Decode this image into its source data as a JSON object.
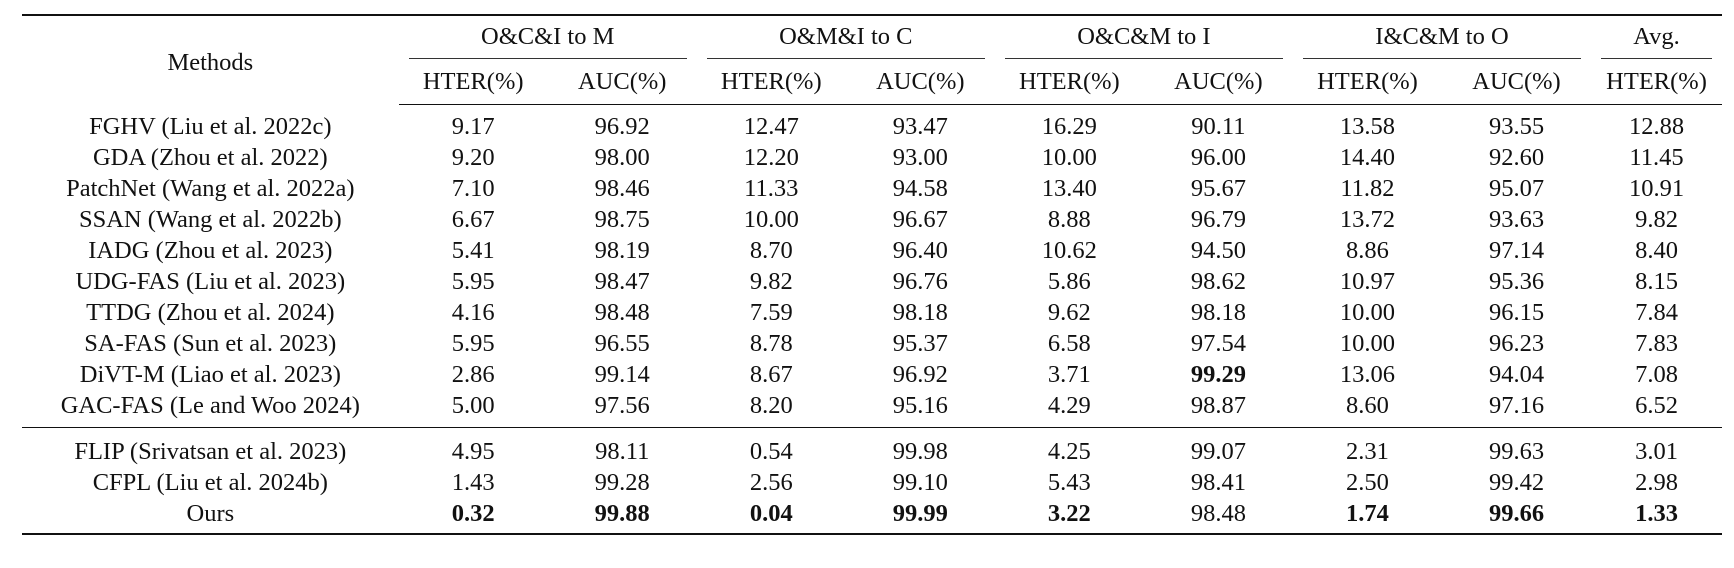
{
  "table": {
    "method_header": "Methods",
    "groups": [
      {
        "label": "O&C&I to M",
        "cols": [
          "HTER(%)",
          "AUC(%)"
        ]
      },
      {
        "label": "O&M&I to C",
        "cols": [
          "HTER(%)",
          "AUC(%)"
        ]
      },
      {
        "label": "O&C&M to I",
        "cols": [
          "HTER(%)",
          "AUC(%)"
        ]
      },
      {
        "label": "I&C&M to O",
        "cols": [
          "HTER(%)",
          "AUC(%)"
        ]
      },
      {
        "label": "Avg.",
        "cols": [
          "HTER(%)"
        ]
      }
    ],
    "section1": [
      {
        "method": "FGHV (Liu et al. 2022c)",
        "values": [
          "9.17",
          "96.92",
          "12.47",
          "93.47",
          "16.29",
          "90.11",
          "13.58",
          "93.55",
          "12.88"
        ],
        "bold": []
      },
      {
        "method": "GDA (Zhou et al. 2022)",
        "values": [
          "9.20",
          "98.00",
          "12.20",
          "93.00",
          "10.00",
          "96.00",
          "14.40",
          "92.60",
          "11.45"
        ],
        "bold": []
      },
      {
        "method": "PatchNet (Wang et al. 2022a)",
        "values": [
          "7.10",
          "98.46",
          "11.33",
          "94.58",
          "13.40",
          "95.67",
          "11.82",
          "95.07",
          "10.91"
        ],
        "bold": []
      },
      {
        "method": "SSAN (Wang et al. 2022b)",
        "values": [
          "6.67",
          "98.75",
          "10.00",
          "96.67",
          "8.88",
          "96.79",
          "13.72",
          "93.63",
          "9.82"
        ],
        "bold": []
      },
      {
        "method": "IADG (Zhou et al. 2023)",
        "values": [
          "5.41",
          "98.19",
          "8.70",
          "96.40",
          "10.62",
          "94.50",
          "8.86",
          "97.14",
          "8.40"
        ],
        "bold": []
      },
      {
        "method": "UDG-FAS (Liu et al. 2023)",
        "values": [
          "5.95",
          "98.47",
          "9.82",
          "96.76",
          "5.86",
          "98.62",
          "10.97",
          "95.36",
          "8.15"
        ],
        "bold": []
      },
      {
        "method": "TTDG (Zhou et al. 2024)",
        "values": [
          "4.16",
          "98.48",
          "7.59",
          "98.18",
          "9.62",
          "98.18",
          "10.00",
          "96.15",
          "7.84"
        ],
        "bold": []
      },
      {
        "method": "SA-FAS (Sun et al. 2023)",
        "values": [
          "5.95",
          "96.55",
          "8.78",
          "95.37",
          "6.58",
          "97.54",
          "10.00",
          "96.23",
          "7.83"
        ],
        "bold": []
      },
      {
        "method": "DiVT-M (Liao et al. 2023)",
        "values": [
          "2.86",
          "99.14",
          "8.67",
          "96.92",
          "3.71",
          "99.29",
          "13.06",
          "94.04",
          "7.08"
        ],
        "bold": [
          5
        ]
      },
      {
        "method": "GAC-FAS (Le and Woo 2024)",
        "values": [
          "5.00",
          "97.56",
          "8.20",
          "95.16",
          "4.29",
          "98.87",
          "8.60",
          "97.16",
          "6.52"
        ],
        "bold": []
      }
    ],
    "section2": [
      {
        "method": "FLIP (Srivatsan et al. 2023)",
        "values": [
          "4.95",
          "98.11",
          "0.54",
          "99.98",
          "4.25",
          "99.07",
          "2.31",
          "99.63",
          "3.01"
        ],
        "bold": []
      },
      {
        "method": "CFPL (Liu et al. 2024b)",
        "values": [
          "1.43",
          "99.28",
          "2.56",
          "99.10",
          "5.43",
          "98.41",
          "2.50",
          "99.42",
          "2.98"
        ],
        "bold": []
      },
      {
        "method": "Ours",
        "values": [
          "0.32",
          "99.88",
          "0.04",
          "99.99",
          "3.22",
          "98.48",
          "1.74",
          "99.66",
          "1.33"
        ],
        "bold": [
          0,
          1,
          2,
          3,
          4,
          6,
          7,
          8
        ]
      }
    ]
  }
}
